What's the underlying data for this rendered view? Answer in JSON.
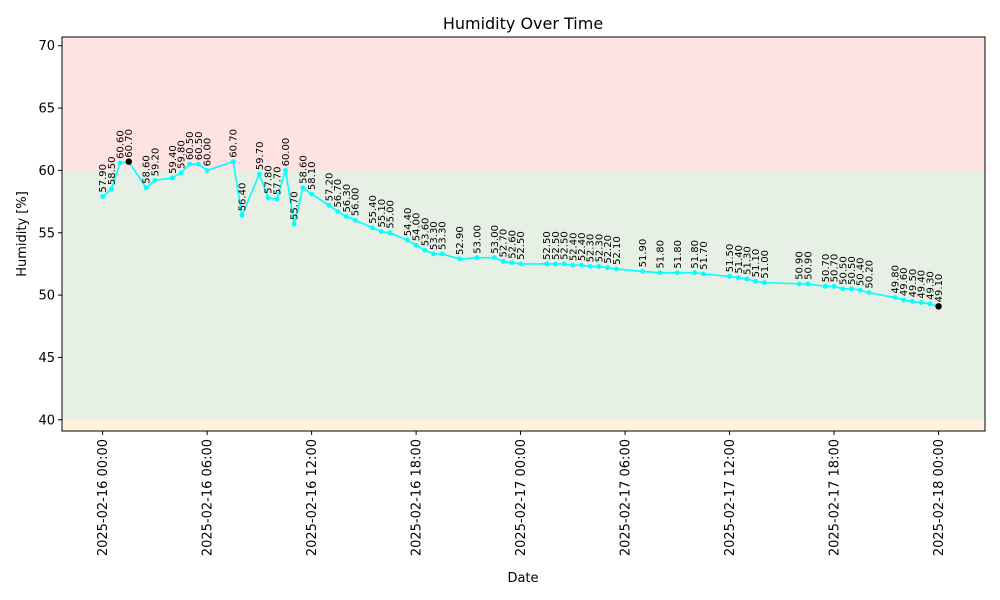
{
  "chart_data": {
    "type": "line",
    "title": "Humidity Over Time",
    "xlabel": "Date",
    "ylabel": "Humidity [%]",
    "ylim": [
      39.1,
      70.7
    ],
    "xlim": [
      "2025-02-15 21:40",
      "2025-02-18 02:40"
    ],
    "yticks": [
      40,
      45,
      50,
      55,
      60,
      65,
      70
    ],
    "xticks": [
      "2025-02-16 00:00",
      "2025-02-16 06:00",
      "2025-02-16 12:00",
      "2025-02-16 18:00",
      "2025-02-17 00:00",
      "2025-02-17 06:00",
      "2025-02-17 12:00",
      "2025-02-17 18:00",
      "2025-02-18 00:00"
    ],
    "grid": false,
    "legend": "none",
    "bands": [
      {
        "from": 60,
        "to": 70.7,
        "color": "#ffe3e3"
      },
      {
        "from": 40,
        "to": 60,
        "color": "#e6f0e4"
      },
      {
        "from": 39.1,
        "to": 40,
        "color": "#fff3e0"
      }
    ],
    "colors": {
      "line": "#00ffff",
      "extreme_marker": "#000000"
    },
    "series": [
      {
        "points": [
          [
            "2025-02-16 00:00",
            57.9
          ],
          [
            "2025-02-16 00:30",
            58.5
          ],
          [
            "2025-02-16 01:00",
            60.6
          ],
          [
            "2025-02-16 01:30",
            60.7
          ],
          [
            "2025-02-16 02:30",
            58.6
          ],
          [
            "2025-02-16 03:00",
            59.2
          ],
          [
            "2025-02-16 04:00",
            59.4
          ],
          [
            "2025-02-16 04:30",
            59.8
          ],
          [
            "2025-02-16 05:00",
            60.5
          ],
          [
            "2025-02-16 05:30",
            60.5
          ],
          [
            "2025-02-16 06:00",
            60.0
          ],
          [
            "2025-02-16 07:30",
            60.7
          ],
          [
            "2025-02-16 08:00",
            56.4
          ],
          [
            "2025-02-16 09:00",
            59.7
          ],
          [
            "2025-02-16 09:30",
            57.8
          ],
          [
            "2025-02-16 10:00",
            57.7
          ],
          [
            "2025-02-16 10:30",
            60.0
          ],
          [
            "2025-02-16 11:00",
            55.7
          ],
          [
            "2025-02-16 11:30",
            58.6
          ],
          [
            "2025-02-16 12:00",
            58.1
          ],
          [
            "2025-02-16 13:00",
            57.2
          ],
          [
            "2025-02-16 13:30",
            56.7
          ],
          [
            "2025-02-16 14:00",
            56.3
          ],
          [
            "2025-02-16 14:30",
            56.0
          ],
          [
            "2025-02-16 15:30",
            55.4
          ],
          [
            "2025-02-16 16:00",
            55.1
          ],
          [
            "2025-02-16 16:30",
            55.0
          ],
          [
            "2025-02-16 17:30",
            54.4
          ],
          [
            "2025-02-16 18:00",
            54.0
          ],
          [
            "2025-02-16 18:30",
            53.6
          ],
          [
            "2025-02-16 19:00",
            53.3
          ],
          [
            "2025-02-16 19:30",
            53.3
          ],
          [
            "2025-02-16 20:30",
            52.9
          ],
          [
            "2025-02-16 21:30",
            53.0
          ],
          [
            "2025-02-16 22:30",
            53.0
          ],
          [
            "2025-02-16 23:00",
            52.7
          ],
          [
            "2025-02-16 23:30",
            52.6
          ],
          [
            "2025-02-17 00:00",
            52.5
          ],
          [
            "2025-02-17 01:30",
            52.5
          ],
          [
            "2025-02-17 02:00",
            52.5
          ],
          [
            "2025-02-17 02:30",
            52.5
          ],
          [
            "2025-02-17 03:00",
            52.4
          ],
          [
            "2025-02-17 03:30",
            52.4
          ],
          [
            "2025-02-17 04:00",
            52.3
          ],
          [
            "2025-02-17 04:30",
            52.3
          ],
          [
            "2025-02-17 05:00",
            52.2
          ],
          [
            "2025-02-17 05:30",
            52.1
          ],
          [
            "2025-02-17 07:00",
            51.9
          ],
          [
            "2025-02-17 08:00",
            51.8
          ],
          [
            "2025-02-17 09:00",
            51.8
          ],
          [
            "2025-02-17 10:00",
            51.8
          ],
          [
            "2025-02-17 10:30",
            51.7
          ],
          [
            "2025-02-17 12:00",
            51.5
          ],
          [
            "2025-02-17 12:30",
            51.4
          ],
          [
            "2025-02-17 13:00",
            51.3
          ],
          [
            "2025-02-17 13:30",
            51.1
          ],
          [
            "2025-02-17 14:00",
            51.0
          ],
          [
            "2025-02-17 16:00",
            50.9
          ],
          [
            "2025-02-17 16:30",
            50.9
          ],
          [
            "2025-02-17 17:30",
            50.7
          ],
          [
            "2025-02-17 18:00",
            50.7
          ],
          [
            "2025-02-17 18:30",
            50.5
          ],
          [
            "2025-02-17 19:00",
            50.5
          ],
          [
            "2025-02-17 19:30",
            50.4
          ],
          [
            "2025-02-17 20:00",
            50.2
          ],
          [
            "2025-02-17 21:30",
            49.8
          ],
          [
            "2025-02-17 22:00",
            49.6
          ],
          [
            "2025-02-17 22:30",
            49.5
          ],
          [
            "2025-02-17 23:00",
            49.4
          ],
          [
            "2025-02-17 23:30",
            49.3
          ],
          [
            "2025-02-18 00:00",
            49.1
          ]
        ]
      }
    ],
    "highlighted_points": [
      "2025-02-16 01:30",
      "2025-02-18 00:00"
    ]
  }
}
